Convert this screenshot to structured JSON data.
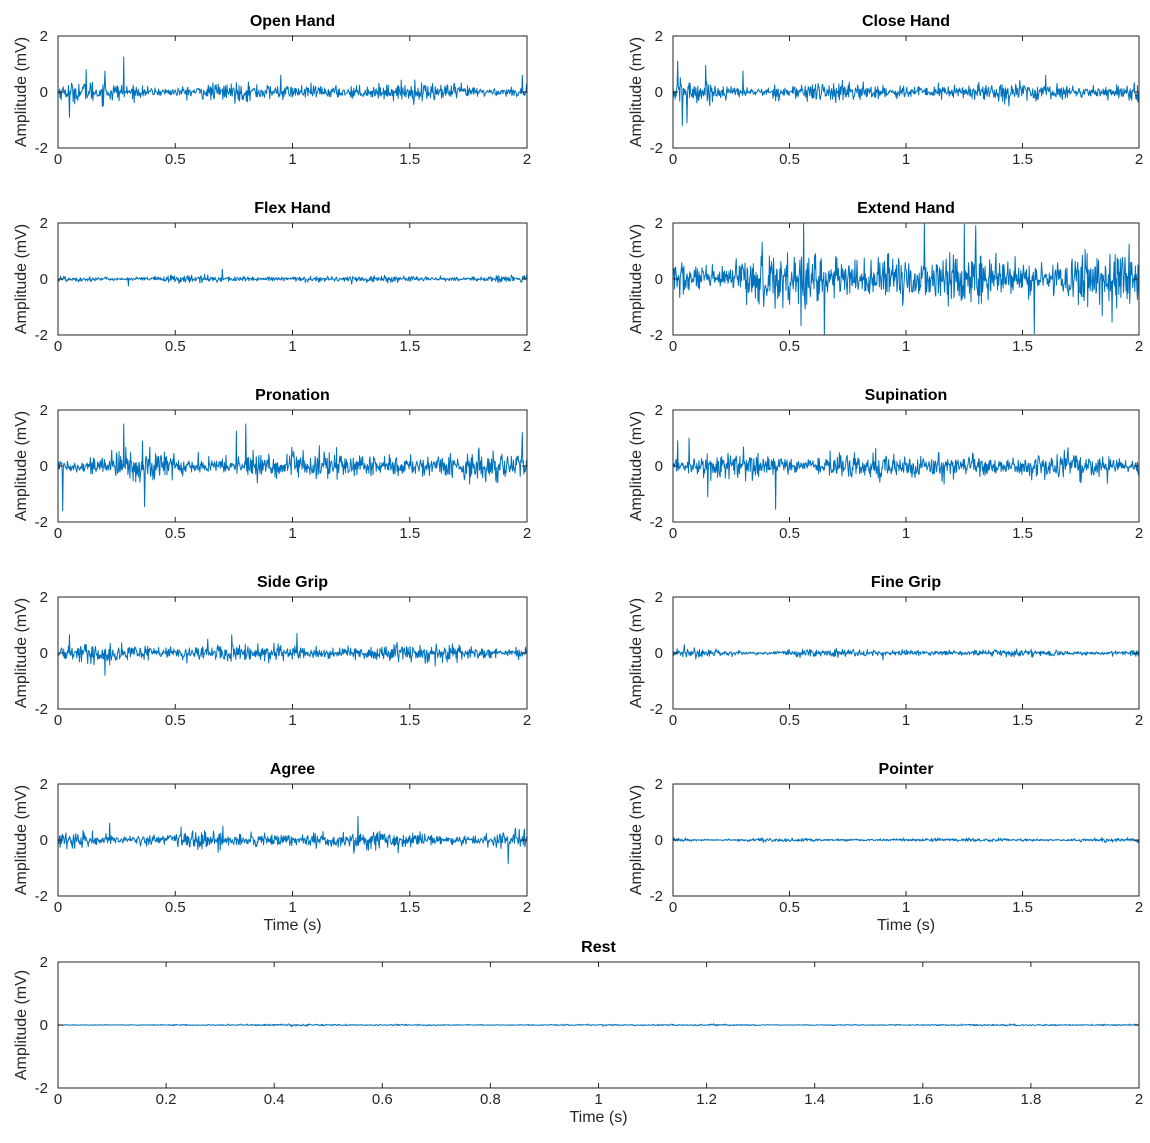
{
  "chart_data": [
    {
      "type": "line",
      "title": "Open Hand",
      "ylabel": "Amplitude (mV)",
      "xlabel": "",
      "xlim": [
        0,
        2
      ],
      "ylim": [
        -2,
        2
      ],
      "x_ticks": [
        "0",
        "0.5",
        "1",
        "1.5",
        "2"
      ],
      "y_ticks": [
        "-2",
        "0",
        "2"
      ],
      "series": [
        {
          "noise_amplitude": 0.3,
          "peaks": [
            {
              "x": 0.28,
              "y": 1.25
            },
            {
              "x": 0.12,
              "y": 0.8
            },
            {
              "x": 0.05,
              "y": -0.9
            },
            {
              "x": 0.2,
              "y": 0.75
            },
            {
              "x": 0.95,
              "y": 0.6
            },
            {
              "x": 1.98,
              "y": 0.6
            }
          ]
        }
      ]
    },
    {
      "type": "line",
      "title": "Close Hand",
      "ylabel": "Amplitude (mV)",
      "xlabel": "",
      "xlim": [
        0,
        2
      ],
      "ylim": [
        -2,
        2
      ],
      "x_ticks": [
        "0",
        "0.5",
        "1",
        "1.5",
        "2"
      ],
      "y_ticks": [
        "-2",
        "0",
        "2"
      ],
      "series": [
        {
          "noise_amplitude": 0.32,
          "peaks": [
            {
              "x": 0.02,
              "y": 1.1
            },
            {
              "x": 0.04,
              "y": -1.2
            },
            {
              "x": 0.14,
              "y": 0.95
            },
            {
              "x": 0.06,
              "y": -1.1
            },
            {
              "x": 0.3,
              "y": 0.75
            },
            {
              "x": 1.6,
              "y": 0.6
            }
          ]
        }
      ]
    },
    {
      "type": "line",
      "title": "Flex Hand",
      "ylabel": "Amplitude (mV)",
      "xlabel": "",
      "xlim": [
        0,
        2
      ],
      "ylim": [
        -2,
        2
      ],
      "x_ticks": [
        "0",
        "0.5",
        "1",
        "1.5",
        "2"
      ],
      "y_ticks": [
        "-2",
        "0",
        "2"
      ],
      "series": [
        {
          "noise_amplitude": 0.12,
          "peaks": [
            {
              "x": 0.7,
              "y": 0.35
            },
            {
              "x": 0.3,
              "y": -0.25
            }
          ]
        }
      ]
    },
    {
      "type": "line",
      "title": "Extend Hand",
      "ylabel": "Amplitude (mV)",
      "xlabel": "",
      "xlim": [
        0,
        2
      ],
      "ylim": [
        -2,
        2
      ],
      "x_ticks": [
        "0",
        "0.5",
        "1",
        "1.5",
        "2"
      ],
      "y_ticks": [
        "-2",
        "0",
        "2"
      ],
      "series": [
        {
          "noise_amplitude": 0.95,
          "peaks": [
            {
              "x": 0.65,
              "y": -2
            },
            {
              "x": 0.56,
              "y": 2
            },
            {
              "x": 1.08,
              "y": 2
            },
            {
              "x": 1.25,
              "y": 1.95
            },
            {
              "x": 1.55,
              "y": -1.95
            },
            {
              "x": 1.3,
              "y": 1.9
            }
          ]
        }
      ]
    },
    {
      "type": "line",
      "title": "Pronation",
      "ylabel": "Amplitude (mV)",
      "xlabel": "",
      "xlim": [
        0,
        2
      ],
      "ylim": [
        -2,
        2
      ],
      "x_ticks": [
        "0",
        "0.5",
        "1",
        "1.5",
        "2"
      ],
      "y_ticks": [
        "-2",
        "0",
        "2"
      ],
      "series": [
        {
          "noise_amplitude": 0.5,
          "peaks": [
            {
              "x": 0.02,
              "y": -1.6
            },
            {
              "x": 0.28,
              "y": 1.5
            },
            {
              "x": 0.8,
              "y": 1.5
            },
            {
              "x": 0.37,
              "y": -1.45
            },
            {
              "x": 1.98,
              "y": 1.2
            },
            {
              "x": 0.76,
              "y": 1.25
            }
          ]
        }
      ]
    },
    {
      "type": "line",
      "title": "Supination",
      "ylabel": "Amplitude (mV)",
      "xlabel": "",
      "xlim": [
        0,
        2
      ],
      "ylim": [
        -2,
        2
      ],
      "x_ticks": [
        "0",
        "0.5",
        "1",
        "1.5",
        "2"
      ],
      "y_ticks": [
        "-2",
        "0",
        "2"
      ],
      "series": [
        {
          "noise_amplitude": 0.45,
          "peaks": [
            {
              "x": 0.44,
              "y": -1.55
            },
            {
              "x": 0.02,
              "y": 0.9
            },
            {
              "x": 0.15,
              "y": -1.1
            },
            {
              "x": 0.07,
              "y": 1.0
            }
          ]
        }
      ]
    },
    {
      "type": "line",
      "title": "Side Grip",
      "ylabel": "Amplitude (mV)",
      "xlabel": "",
      "xlim": [
        0,
        2
      ],
      "ylim": [
        -2,
        2
      ],
      "x_ticks": [
        "0",
        "0.5",
        "1",
        "1.5",
        "2"
      ],
      "y_ticks": [
        "-2",
        "0",
        "2"
      ],
      "series": [
        {
          "noise_amplitude": 0.3,
          "peaks": [
            {
              "x": 1.02,
              "y": 0.7
            },
            {
              "x": 0.74,
              "y": 0.65
            },
            {
              "x": 0.2,
              "y": -0.8
            },
            {
              "x": 0.05,
              "y": 0.65
            }
          ]
        }
      ]
    },
    {
      "type": "line",
      "title": "Fine Grip",
      "ylabel": "Amplitude (mV)",
      "xlabel": "",
      "xlim": [
        0,
        2
      ],
      "ylim": [
        -2,
        2
      ],
      "x_ticks": [
        "0",
        "0.5",
        "1",
        "1.5",
        "2"
      ],
      "y_ticks": [
        "-2",
        "0",
        "2"
      ],
      "series": [
        {
          "noise_amplitude": 0.13,
          "peaks": [
            {
              "x": 0.05,
              "y": 0.3
            },
            {
              "x": 0.9,
              "y": -0.25
            }
          ]
        }
      ]
    },
    {
      "type": "line",
      "title": "Agree",
      "ylabel": "Amplitude (mV)",
      "xlabel": "Time (s)",
      "xlim": [
        0,
        2
      ],
      "ylim": [
        -2,
        2
      ],
      "x_ticks": [
        "0",
        "0.5",
        "1",
        "1.5",
        "2"
      ],
      "y_ticks": [
        "-2",
        "0",
        "2"
      ],
      "series": [
        {
          "noise_amplitude": 0.3,
          "peaks": [
            {
              "x": 1.28,
              "y": 0.85
            },
            {
              "x": 1.92,
              "y": -0.85
            },
            {
              "x": 0.22,
              "y": 0.6
            }
          ]
        }
      ]
    },
    {
      "type": "line",
      "title": "Pointer",
      "ylabel": "Amplitude (mV)",
      "xlabel": "Time (s)",
      "xlim": [
        0,
        2
      ],
      "ylim": [
        -2,
        2
      ],
      "x_ticks": [
        "0",
        "0.5",
        "1",
        "1.5",
        "2"
      ],
      "y_ticks": [
        "-2",
        "0",
        "2"
      ],
      "series": [
        {
          "noise_amplitude": 0.06,
          "peaks": []
        }
      ]
    },
    {
      "type": "line",
      "title": "Rest",
      "ylabel": "Amplitude (mV)",
      "xlabel": "Time (s)",
      "xlim": [
        0,
        2
      ],
      "ylim": [
        -2,
        2
      ],
      "x_ticks": [
        "0",
        "0.2",
        "0.4",
        "0.6",
        "0.8",
        "1",
        "1.2",
        "1.4",
        "1.6",
        "1.8",
        "2"
      ],
      "y_ticks": [
        "-2",
        "0",
        "2"
      ],
      "series": [
        {
          "noise_amplitude": 0.025,
          "peaks": []
        }
      ]
    }
  ],
  "colors": {
    "line": "#0072BD",
    "axes": "#262626",
    "title": "#000000"
  }
}
